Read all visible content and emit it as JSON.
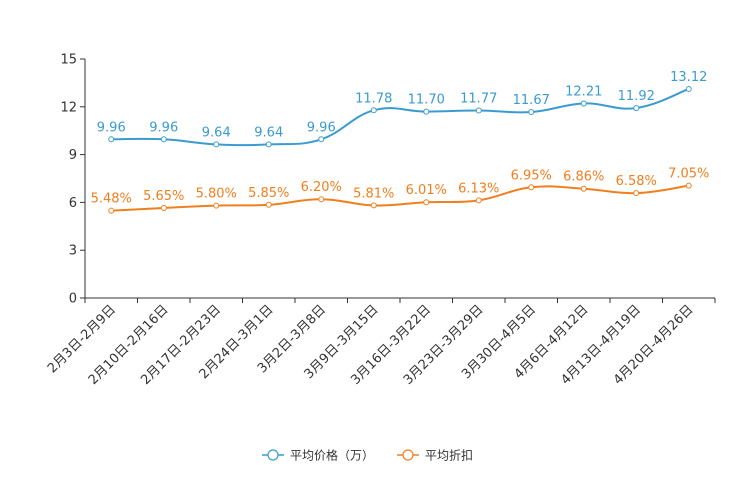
{
  "chart_data": {
    "type": "line",
    "categories": [
      "2月3日-2月9日",
      "2月10日-2月16日",
      "2月17日-2月23日",
      "2月24日-3月1日",
      "3月2日-3月8日",
      "3月9日-3月15日",
      "3月16日-3月22日",
      "3月23日-3月29日",
      "3月30日-4月5日",
      "4月6日-4月12日",
      "4月13日-4月19日",
      "4月20日-4月26日"
    ],
    "ylim": [
      0,
      15
    ],
    "yticks": [
      0,
      3,
      6,
      9,
      12,
      15
    ],
    "series": [
      {
        "name": "平均价格（万）",
        "color": "#3a9bd0",
        "values": [
          9.96,
          9.96,
          9.64,
          9.64,
          9.96,
          11.78,
          11.7,
          11.77,
          11.67,
          12.21,
          11.92,
          13.12
        ],
        "labels": [
          "9.96",
          "9.96",
          "9.64",
          "9.64",
          "9.96",
          "11.78",
          "11.70",
          "11.77",
          "11.67",
          "12.21",
          "11.92",
          "13.12"
        ]
      },
      {
        "name": "平均折扣",
        "color": "#f07f1e",
        "values": [
          5.48,
          5.65,
          5.8,
          5.85,
          6.2,
          5.81,
          6.01,
          6.13,
          6.95,
          6.86,
          6.58,
          7.05
        ],
        "labels": [
          "5.48%",
          "5.65%",
          "5.80%",
          "5.85%",
          "6.20%",
          "5.81%",
          "6.01%",
          "6.13%",
          "6.95%",
          "6.86%",
          "6.58%",
          "7.05%"
        ]
      }
    ],
    "legend_position": "bottom-center",
    "grid": false
  }
}
